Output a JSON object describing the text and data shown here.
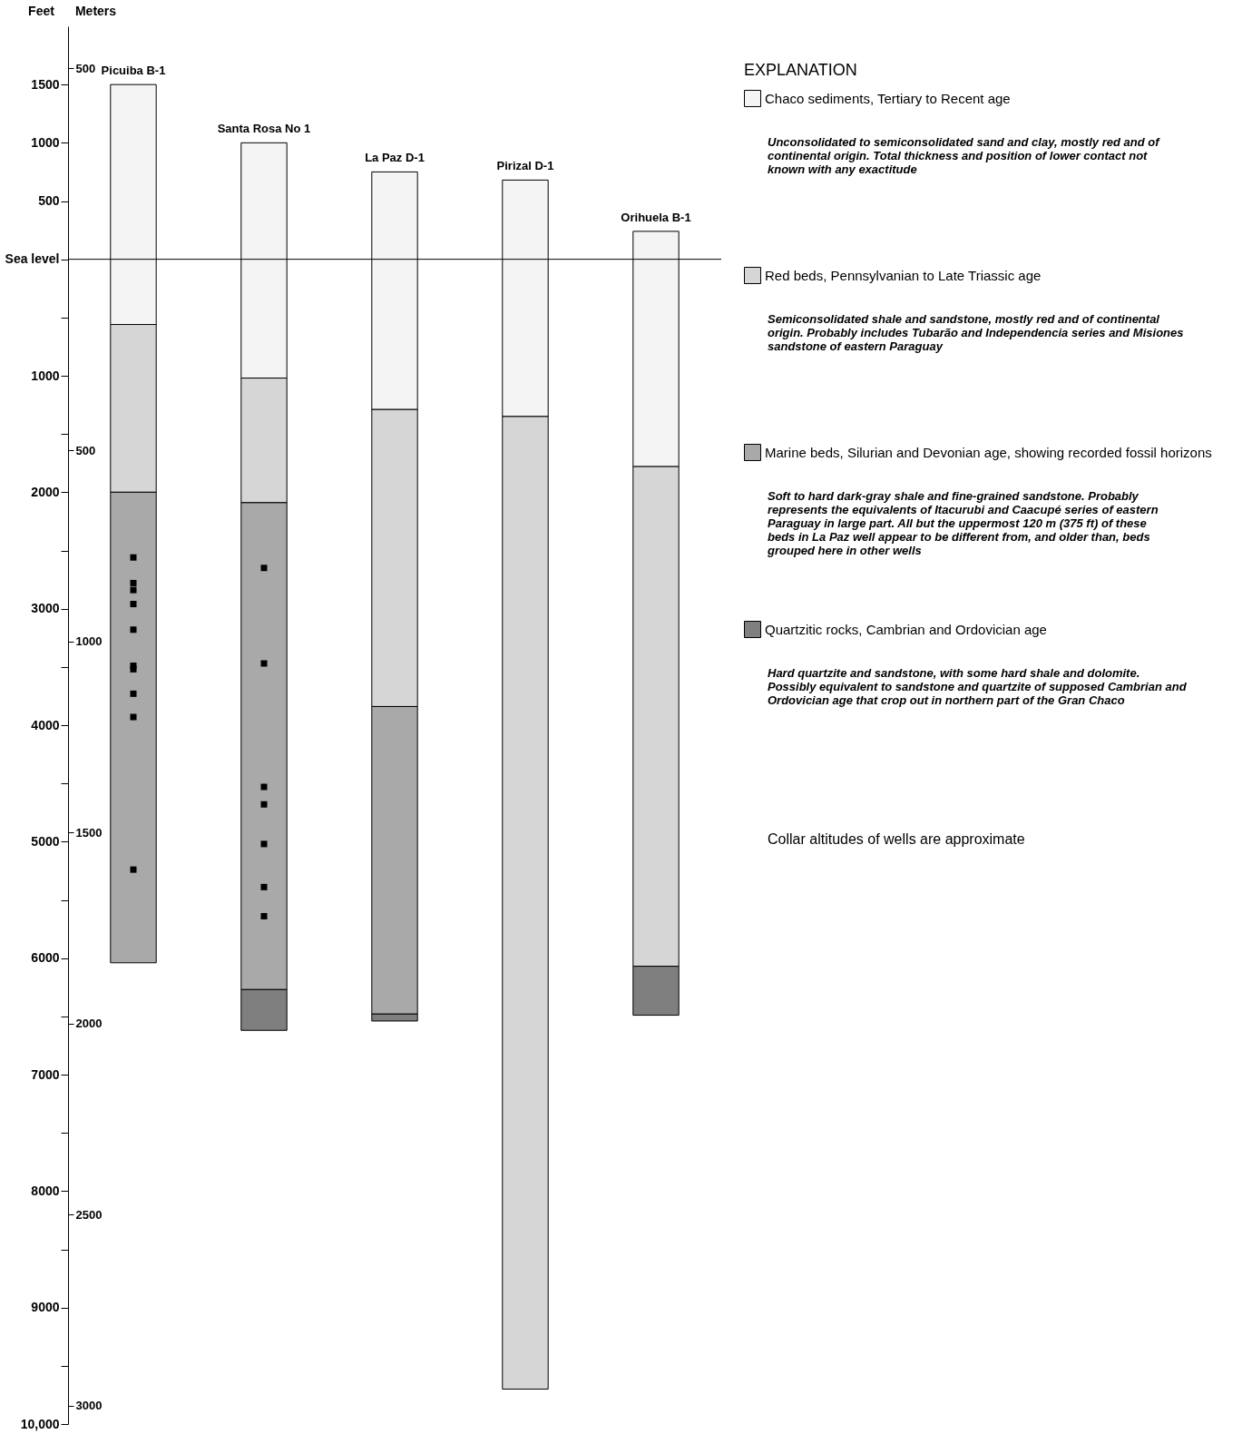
{
  "chart_data": {
    "type": "bar",
    "categories": [
      "Picuiba B-1",
      "Santa Rosa No 1",
      "La Paz D-1",
      "Pirizal D-1",
      "Orihuela B-1"
    ],
    "series": [
      {
        "name": "Chaco sediments, Tertiary to Recent age",
        "color": "#f4f4f4",
        "base": [
          1500,
          1000,
          750,
          680,
          240
        ],
        "values": [
          -2060,
          -2020,
          -2040,
          -2030,
          -2020
        ]
      },
      {
        "name": "Red beds, Pennsylvanian to Late Triassic age",
        "color": "#d6d6d6",
        "base": [
          -560,
          -1020,
          -1290,
          -1350,
          -1780
        ],
        "values": [
          -1440,
          -1070,
          -2550,
          -8350,
          -4290
        ]
      },
      {
        "name": "Marine beds, Silurian and Devonian age, showing recorded fossil horizons",
        "color": "#a9a9a9",
        "base": [
          -2000,
          -2090,
          -3840,
          null,
          null
        ],
        "values": [
          -4040,
          -4180,
          -2640,
          null,
          null
        ]
      },
      {
        "name": "Quartzitic rocks, Cambrian and Ordovician age",
        "color": "#7f7f7f",
        "base": [
          null,
          -6270,
          -6480,
          null,
          -6070
        ],
        "values": [
          null,
          -350,
          -60,
          null,
          -420
        ]
      },
      {
        "type": "scatter",
        "marker": "square",
        "color": "#000000",
        "x": [
          "Picuiba B-1",
          "Picuiba B-1",
          "Picuiba B-1",
          "Picuiba B-1",
          "Picuiba B-1",
          "Picuiba B-1",
          "Picuiba B-1",
          "Picuiba B-1",
          "Picuiba B-1",
          "Picuiba B-1",
          "Santa Rosa No 1",
          "Santa Rosa No 1",
          "Santa Rosa No 1",
          "Santa Rosa No 1",
          "Santa Rosa No 1",
          "Santa Rosa No 1",
          "Santa Rosa No 1"
        ],
        "values": [
          -2560,
          -2780,
          -2840,
          -2960,
          -3180,
          -3490,
          -3520,
          -3730,
          -3930,
          -5240,
          -2650,
          -3470,
          -4530,
          -4680,
          -5020,
          -5390,
          -5640
        ]
      }
    ],
    "ylabel": "Feet",
    "y2label": "Meters",
    "legend_title": "EXPLANATION",
    "legend": "right",
    "ylim": [
      -10000,
      2000
    ],
    "yticks": [
      1500,
      1000,
      500,
      {
        "value": 0,
        "label": "Sea level"
      },
      {
        "value": -500,
        "label": null
      },
      {
        "value": -1000,
        "label": "1000"
      },
      {
        "value": -1500,
        "label": null
      },
      {
        "value": -2000,
        "label": "2000"
      },
      {
        "value": -2500,
        "label": null
      },
      {
        "value": -3000,
        "label": "3000"
      },
      {
        "value": -3500,
        "label": null
      },
      {
        "value": -4000,
        "label": "4000"
      },
      {
        "value": -4500,
        "label": null
      },
      {
        "value": -5000,
        "label": "5000"
      },
      {
        "value": -5500,
        "label": null
      },
      {
        "value": -6000,
        "label": "6000"
      },
      {
        "value": -6500,
        "label": null
      },
      {
        "value": -7000,
        "label": "7000"
      },
      {
        "value": -7500,
        "label": null
      },
      {
        "value": -8000,
        "label": "8000"
      },
      {
        "value": -8500,
        "label": null
      },
      {
        "value": -9000,
        "label": "9000"
      },
      {
        "value": -9500,
        "label": null
      },
      {
        "value": -10000,
        "label": "10,000"
      }
    ],
    "y2lim": [
      -3048,
      609.6
    ],
    "y2ticks": [
      500,
      {
        "value": -500,
        "label": "500"
      },
      {
        "value": -1000,
        "label": "1000"
      },
      {
        "value": -1500,
        "label": "1500"
      },
      {
        "value": -2000,
        "label": "2000"
      },
      {
        "value": -2500,
        "label": "2500"
      },
      {
        "value": -3000,
        "label": "3000"
      }
    ],
    "ref_lines": [
      {
        "axis": "y",
        "value": 0
      }
    ],
    "grid": false,
    "annotations": [
      "Unconsolidated to semiconsolidated sand and clay, mostly red and of continental origin. Total thickness and position of lower contact not known with any exactitude",
      "Semiconsolidated shale and sandstone, mostly red and of continental origin. Probably includes Tubarão and Independencia series and Misiones sandstone of eastern Paraguay",
      "Soft to hard dark-gray shale and fine-grained sandstone. Probably represents the equivalents of Itacurubi and Caacupé series of eastern Paraguay in large part. All but the uppermost 120 m (375 ft) of these beds in La Paz well appear to be different from, and older than, beds grouped here in other wells",
      "Hard quartzite and sandstone, with some hard shale and dolomite. Possibly equivalent to sandstone and quartzite of supposed Cambrian and Ordovician age that crop out in northern part of the Gran Chaco",
      "Collar altitudes of wells are approximate"
    ]
  }
}
